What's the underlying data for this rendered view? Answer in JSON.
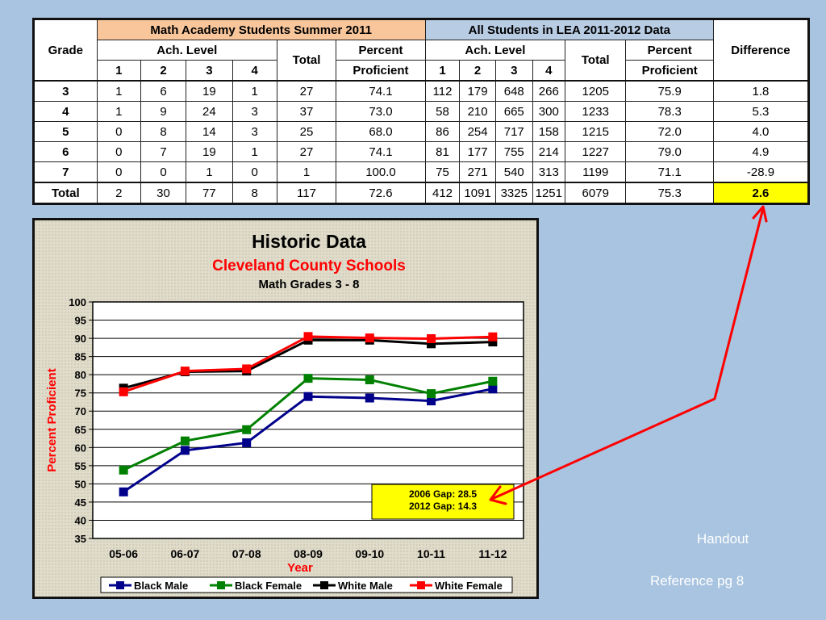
{
  "table": {
    "grade_label": "Grade",
    "group1_title": "Math Academy Students Summer 2011",
    "group2_title": "All Students in LEA 2011-2012 Data",
    "ach_label": "Ach. Level",
    "total_label": "Total",
    "percent_label": "Percent",
    "proficient_label": "Proficient",
    "difference_label": "Difference",
    "level_labels": [
      "1",
      "2",
      "3",
      "4"
    ],
    "rows": [
      {
        "grade": "3",
        "academy": [
          "1",
          "6",
          "19",
          "1",
          "27",
          "74.1"
        ],
        "lea": [
          "112",
          "179",
          "648",
          "266",
          "1205",
          "75.9"
        ],
        "diff": "1.8"
      },
      {
        "grade": "4",
        "academy": [
          "1",
          "9",
          "24",
          "3",
          "37",
          "73.0"
        ],
        "lea": [
          "58",
          "210",
          "665",
          "300",
          "1233",
          "78.3"
        ],
        "diff": "5.3"
      },
      {
        "grade": "5",
        "academy": [
          "0",
          "8",
          "14",
          "3",
          "25",
          "68.0"
        ],
        "lea": [
          "86",
          "254",
          "717",
          "158",
          "1215",
          "72.0"
        ],
        "diff": "4.0"
      },
      {
        "grade": "6",
        "academy": [
          "0",
          "7",
          "19",
          "1",
          "27",
          "74.1"
        ],
        "lea": [
          "81",
          "177",
          "755",
          "214",
          "1227",
          "79.0"
        ],
        "diff": "4.9"
      },
      {
        "grade": "7",
        "academy": [
          "0",
          "0",
          "1",
          "0",
          "1",
          "100.0"
        ],
        "lea": [
          "75",
          "271",
          "540",
          "313",
          "1199",
          "71.1"
        ],
        "diff": "-28.9"
      },
      {
        "grade": "Total",
        "academy": [
          "2",
          "30",
          "77",
          "8",
          "117",
          "72.6"
        ],
        "lea": [
          "412",
          "1091",
          "3325",
          "1251",
          "6079",
          "75.3"
        ],
        "diff": "2.6"
      }
    ]
  },
  "chart_data": {
    "type": "line",
    "title": "Historic Data",
    "subtitle": "Cleveland County Schools",
    "subtitle2": "Math Grades 3 - 8",
    "xlabel": "Year",
    "ylabel": "Percent Proficient",
    "ylim": [
      35,
      100
    ],
    "ytick_step": 5,
    "grid": true,
    "legend_position": "bottom",
    "categories": [
      "05-06",
      "06-07",
      "07-08",
      "08-09",
      "09-10",
      "10-11",
      "11-12"
    ],
    "series": [
      {
        "name": "Black Male",
        "color": "#00008b",
        "values": [
          47.8,
          59.2,
          61.3,
          74.0,
          73.6,
          72.8,
          76.1
        ]
      },
      {
        "name": "Black Female",
        "color": "#008000",
        "values": [
          53.8,
          61.8,
          64.9,
          79.0,
          78.6,
          74.8,
          78.2
        ]
      },
      {
        "name": "White Male",
        "color": "#000000",
        "values": [
          76.3,
          80.8,
          81.0,
          89.5,
          89.5,
          88.5,
          89.0
        ]
      },
      {
        "name": "White Female",
        "color": "#ff0000",
        "values": [
          75.3,
          81.0,
          81.6,
          90.5,
          90.1,
          89.9,
          90.4
        ]
      }
    ],
    "annotation": {
      "lines": [
        "2006 Gap: 28.5",
        "2012 Gap: 14.3"
      ],
      "color": "#ffff00"
    }
  },
  "notes": {
    "handout": "Handout",
    "reference": "Reference pg 8"
  },
  "arrow_color": "#ff0000"
}
